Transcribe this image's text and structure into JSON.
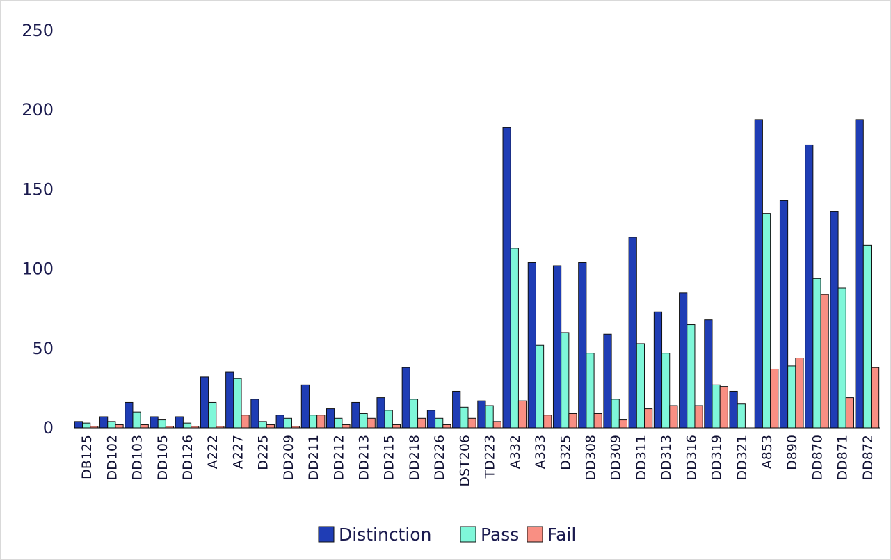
{
  "chart_data": {
    "type": "bar",
    "title": "",
    "xlabel": "",
    "ylabel": "",
    "ylim": [
      0,
      250
    ],
    "yticks": [
      0,
      50,
      100,
      150,
      200,
      250
    ],
    "grid": false,
    "legend_position": "bottom",
    "categories": [
      "DB125",
      "DD102",
      "DD103",
      "DD105",
      "DD126",
      "A222",
      "A227",
      "D225",
      "DD209",
      "DD211",
      "DD212",
      "DD213",
      "DD215",
      "DD218",
      "DD226",
      "DST206",
      "TD223",
      "A332",
      "A333",
      "D325",
      "DD308",
      "DD309",
      "DD311",
      "DD313",
      "DD316",
      "DD319",
      "DD321",
      "A853",
      "D890",
      "DD870",
      "DD871",
      "DD872"
    ],
    "series": [
      {
        "name": "Distinction",
        "color": "#1f3db5",
        "values": [
          4,
          7,
          16,
          7,
          7,
          32,
          35,
          18,
          8,
          27,
          12,
          16,
          19,
          38,
          11,
          23,
          17,
          189,
          104,
          102,
          104,
          59,
          120,
          73,
          85,
          68,
          23,
          194,
          143,
          178,
          136,
          194
        ]
      },
      {
        "name": "Pass",
        "color": "#7ff7d9",
        "values": [
          3,
          4,
          10,
          5,
          3,
          16,
          31,
          4,
          6,
          8,
          6,
          9,
          11,
          18,
          6,
          13,
          14,
          113,
          52,
          60,
          47,
          18,
          53,
          47,
          65,
          27,
          15,
          135,
          39,
          94,
          88,
          115
        ]
      },
      {
        "name": "Fail",
        "color": "#f98f83",
        "values": [
          1,
          2,
          2,
          1,
          1,
          1,
          8,
          2,
          1,
          8,
          2,
          6,
          2,
          6,
          2,
          6,
          4,
          17,
          8,
          9,
          9,
          5,
          12,
          14,
          14,
          26,
          0,
          37,
          44,
          84,
          19,
          38
        ]
      }
    ]
  }
}
